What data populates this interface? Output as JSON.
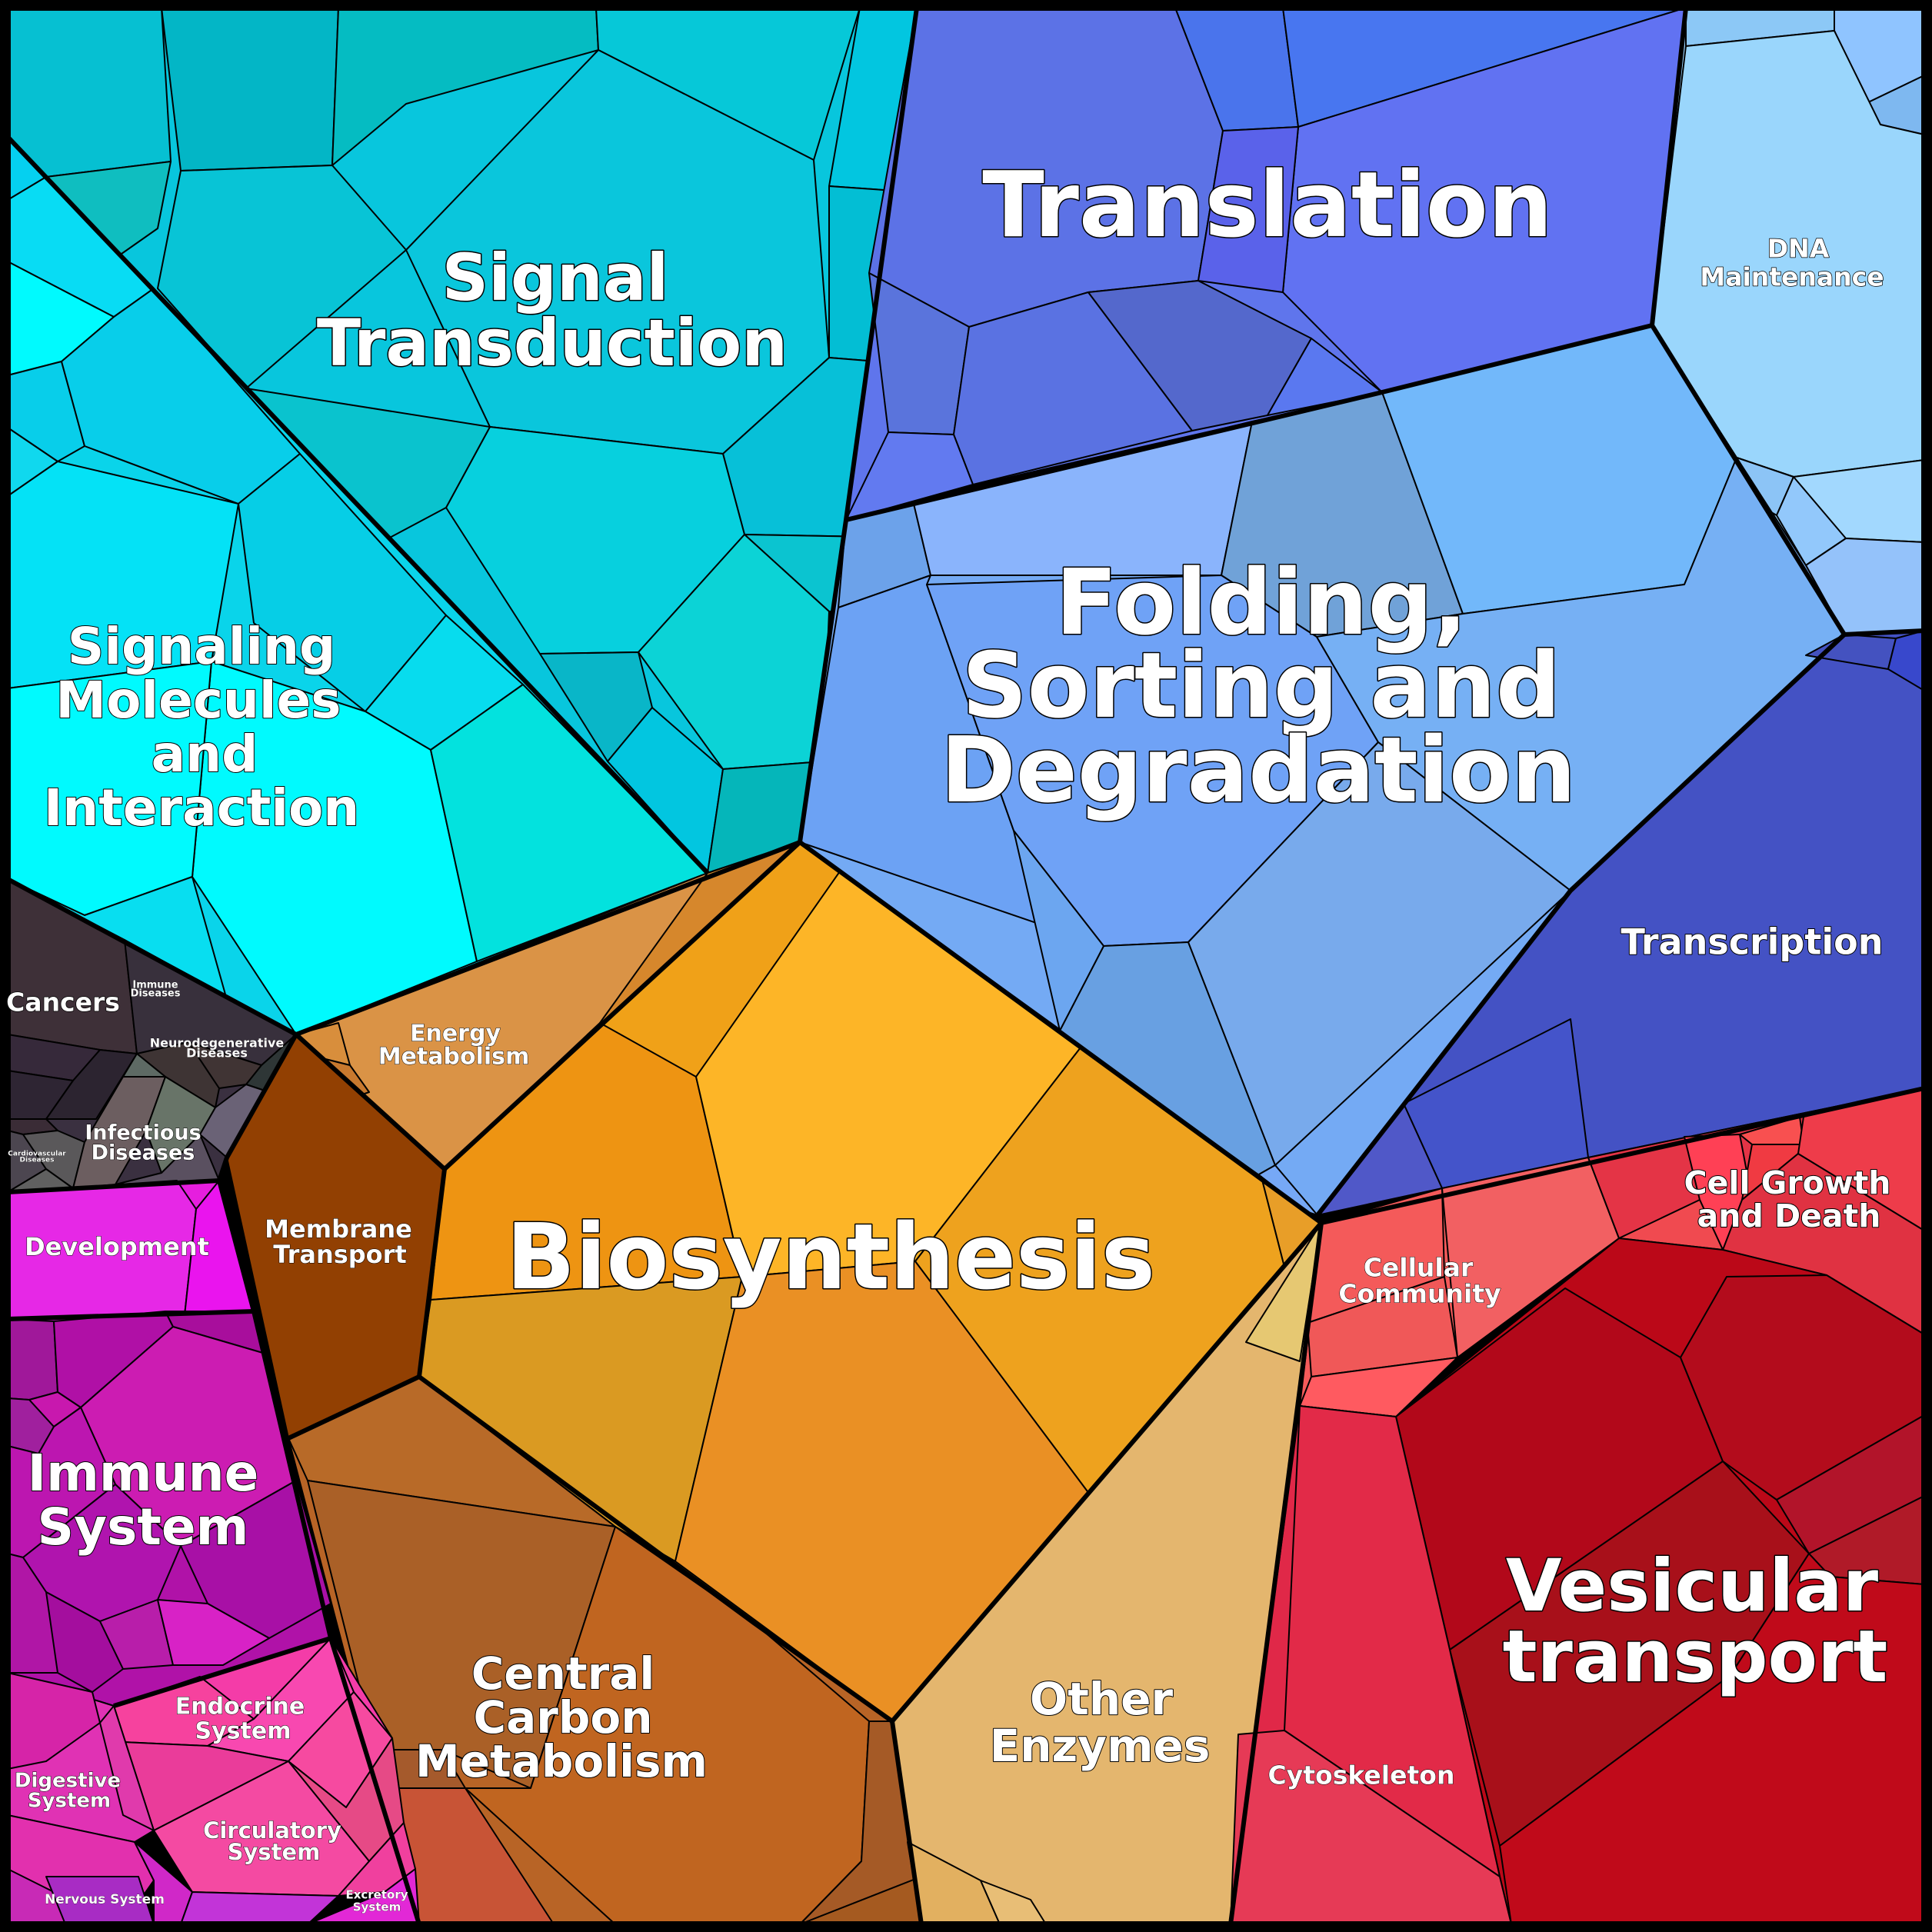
{
  "diagram": {
    "type": "voronoi-treemap",
    "colors": {
      "signaling": "#06C8E0",
      "signal_transduction": "#07C4DC",
      "translation": "#5F73EE",
      "dna_maintenance": "#9AD0FC",
      "folding": "#73A8F2",
      "transcription": "#4350C3",
      "disease": "#3A3442",
      "biosynthesis": "#F0A11E",
      "energy": "#DC9344",
      "membrane_transport": "#924002",
      "central_carbon": "#B96425",
      "other_enzymes": "#E4B66E",
      "development": "#E61EDD",
      "immune": "#B012A8",
      "endocrine": "#F43CA8",
      "cellular_community": "#F45A5A",
      "cell_growth": "#E43446",
      "vesicular": "#BB0818",
      "cytoskeleton": "#E42A48"
    },
    "labels": {
      "translation": "Translation",
      "signal_transduction_1": "Signal",
      "signal_transduction_2": "Transduction",
      "signaling_1": "Signaling",
      "signaling_2": "Molecules",
      "signaling_3": "and",
      "signaling_4": "Interaction",
      "dna_1": "DNA",
      "dna_2": "Maintenance",
      "folding_1": "Folding,",
      "folding_2": "Sorting and",
      "folding_3": "Degradation",
      "transcription": "Transcription",
      "cancers": "Cancers",
      "immune_diseases_1": "Immune",
      "immune_diseases_2": "Diseases",
      "neurodegenerative_1": "Neurodegenerative",
      "neurodegenerative_2": "Diseases",
      "infectious_1": "Infectious",
      "infectious_2": "Diseases",
      "cardiovascular_1": "Cardiovascular",
      "cardiovascular_2": "Diseases",
      "energy_1": "Energy",
      "energy_2": "Metabolism",
      "membrane_1": "Membrane",
      "membrane_2": "Transport",
      "biosynthesis": "Biosynthesis",
      "central_1": "Central",
      "central_2": "Carbon",
      "central_3": "Metabolism",
      "other_1": "Other",
      "other_2": "Enzymes",
      "development": "Development",
      "immune_1": "Immune",
      "immune_2": "System",
      "endocrine_1": "Endocrine",
      "endocrine_2": "System",
      "digestive_1": "Digestive",
      "digestive_2": "System",
      "circulatory_1": "Circulatory",
      "circulatory_2": "System",
      "nervous": "Nervous System",
      "excretory_1": "Excretory",
      "excretory_2": "System",
      "cellular_community_1": "Cellular",
      "cellular_community_2": "Community",
      "cell_growth_1": "Cell Growth",
      "cell_growth_2": "and Death",
      "vesicular_1": "Vesicular",
      "vesicular_2": "transport",
      "cytoskeleton": "Cytoskeleton"
    }
  }
}
